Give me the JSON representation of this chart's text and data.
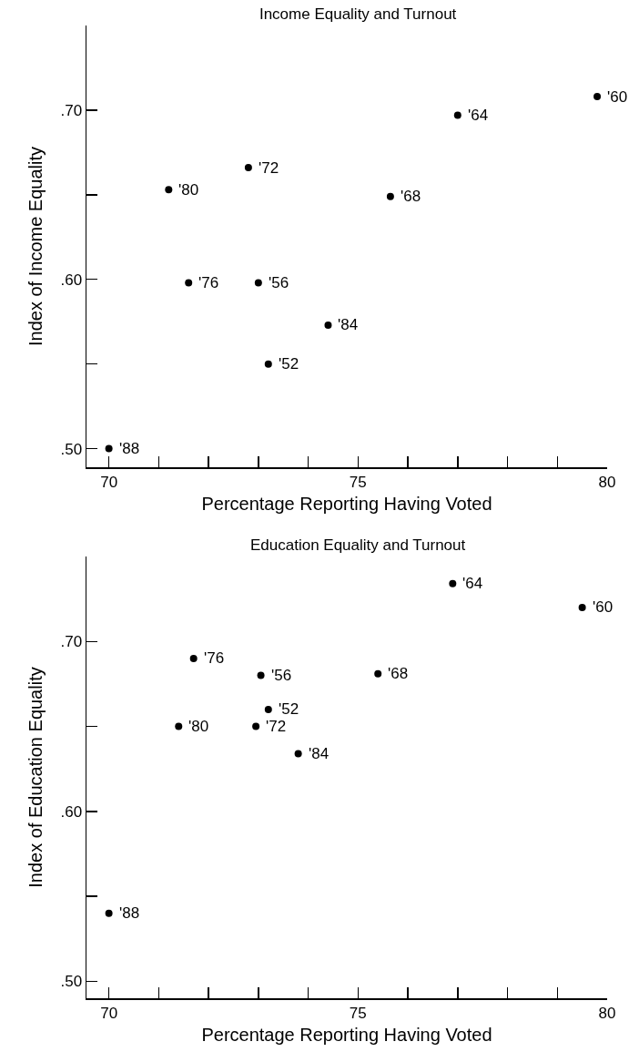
{
  "chart_data": [
    {
      "type": "scatter",
      "title": "Income Equality and Turnout",
      "xlabel": "Percentage Reporting Having Voted",
      "ylabel": "Index of Income Equality",
      "series": [
        {
          "color": "#000000",
          "x": [
            79.8,
            77.0,
            72.8,
            71.2,
            75.65,
            71.6,
            73.0,
            74.4,
            73.2,
            70.0
          ],
          "values": [
            0.708,
            0.697,
            0.666,
            0.653,
            0.649,
            0.598,
            0.598,
            0.573,
            0.55,
            0.5
          ]
        }
      ],
      "annotations": [
        {
          "text": "'60",
          "x": 79.8,
          "y": 0.708
        },
        {
          "text": "'64",
          "x": 77.0,
          "y": 0.697
        },
        {
          "text": "'72",
          "x": 72.8,
          "y": 0.666
        },
        {
          "text": "'80",
          "x": 71.2,
          "y": 0.653
        },
        {
          "text": "'68",
          "x": 75.65,
          "y": 0.649
        },
        {
          "text": "'76",
          "x": 71.6,
          "y": 0.598
        },
        {
          "text": "'56",
          "x": 73.0,
          "y": 0.598
        },
        {
          "text": "'84",
          "x": 74.4,
          "y": 0.573
        },
        {
          "text": "'52",
          "x": 73.2,
          "y": 0.55
        },
        {
          "text": "'88",
          "x": 70.0,
          "y": 0.5
        }
      ],
      "xlim": [
        69.55,
        80
      ],
      "ylim": [
        0.489,
        0.75
      ],
      "xticks": [
        70,
        {
          "value": 71,
          "label": null
        },
        {
          "value": 72,
          "label": null
        },
        {
          "value": 73,
          "label": null
        },
        {
          "value": 74,
          "label": null
        },
        75,
        {
          "value": 76,
          "label": null
        },
        {
          "value": 77,
          "label": null
        },
        {
          "value": 78,
          "label": null
        },
        {
          "value": 79,
          "label": null
        },
        80
      ],
      "yticks": [
        {
          "value": 0.5,
          "label": ".50"
        },
        {
          "value": 0.55,
          "label": null
        },
        {
          "value": 0.6,
          "label": ".60"
        },
        {
          "value": 0.65,
          "label": null
        },
        {
          "value": 0.7,
          "label": ".70"
        }
      ],
      "marker": "circle"
    },
    {
      "type": "scatter",
      "title": "Education Equality and Turnout",
      "xlabel": "Percentage Reporting Having Voted",
      "ylabel": "Index of Education Equality",
      "series": [
        {
          "color": "#000000",
          "x": [
            76.9,
            79.5,
            71.7,
            73.05,
            75.4,
            73.2,
            71.4,
            72.95,
            73.8,
            70.0
          ],
          "values": [
            0.734,
            0.72,
            0.69,
            0.68,
            0.681,
            0.66,
            0.65,
            0.65,
            0.634,
            0.54
          ]
        }
      ],
      "annotations": [
        {
          "text": "'64",
          "x": 76.9,
          "y": 0.734
        },
        {
          "text": "'60",
          "x": 79.5,
          "y": 0.72
        },
        {
          "text": "'76",
          "x": 71.7,
          "y": 0.69
        },
        {
          "text": "'56",
          "x": 73.05,
          "y": 0.68
        },
        {
          "text": "'68",
          "x": 75.4,
          "y": 0.681
        },
        {
          "text": "'52",
          "x": 73.2,
          "y": 0.66
        },
        {
          "text": "'80",
          "x": 71.4,
          "y": 0.65
        },
        {
          "text": "'72",
          "x": 72.95,
          "y": 0.65
        },
        {
          "text": "'84",
          "x": 73.8,
          "y": 0.634
        },
        {
          "text": "'88",
          "x": 70.0,
          "y": 0.54
        }
      ],
      "xlim": [
        69.55,
        80
      ],
      "ylim": [
        0.49,
        0.75
      ],
      "xticks": [
        70,
        {
          "value": 71,
          "label": null
        },
        {
          "value": 72,
          "label": null
        },
        {
          "value": 73,
          "label": null
        },
        {
          "value": 74,
          "label": null
        },
        75,
        {
          "value": 76,
          "label": null
        },
        {
          "value": 77,
          "label": null
        },
        {
          "value": 78,
          "label": null
        },
        {
          "value": 79,
          "label": null
        },
        80
      ],
      "yticks": [
        {
          "value": 0.5,
          "label": ".50"
        },
        {
          "value": 0.55,
          "label": null
        },
        {
          "value": 0.6,
          "label": ".60"
        },
        {
          "value": 0.65,
          "label": null
        },
        {
          "value": 0.7,
          "label": ".70"
        }
      ],
      "marker": "circle"
    }
  ]
}
